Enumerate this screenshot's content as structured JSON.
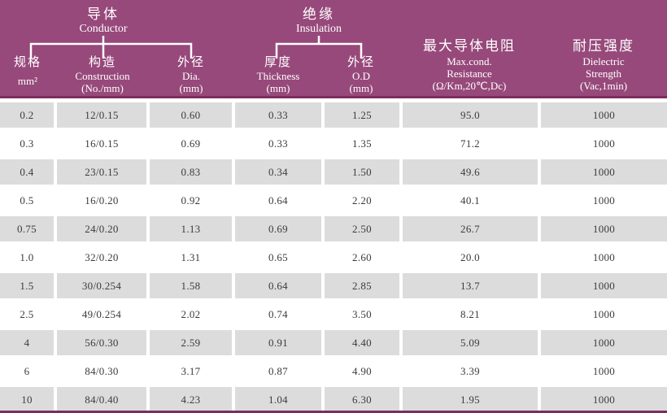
{
  "colors": {
    "header_bg": "#97497b",
    "rule": "#7b2d5e",
    "row_gray": "#dcdcdc",
    "row_white": "#ffffff",
    "header_text": "#ffffff",
    "text": "#3b3b3b"
  },
  "header": {
    "groups": [
      {
        "zh": "导体",
        "en": "Conductor"
      },
      {
        "zh": "绝缘",
        "en": "Insulation"
      }
    ],
    "columns": [
      {
        "zh": "规格",
        "lines": [
          "mm²"
        ]
      },
      {
        "zh": "构造",
        "lines": [
          "Construction",
          "(No./mm)"
        ]
      },
      {
        "zh": "外径",
        "lines": [
          "Dia.",
          "(mm)"
        ]
      },
      {
        "zh": "厚度",
        "lines": [
          "Thickness",
          "(mm)"
        ]
      },
      {
        "zh": "外径",
        "lines": [
          "O.D",
          "(mm)"
        ]
      },
      {
        "zh": "最大导体电阻",
        "lines": [
          "Max.cond.",
          "Resistance",
          "(Ω/Km,20℃,Dc)"
        ]
      },
      {
        "zh": "耐压强度",
        "lines": [
          "Dielectric",
          "Strength",
          "(Vac,1min)"
        ]
      }
    ]
  },
  "table": {
    "rows": [
      [
        "0.2",
        "12/0.15",
        "0.60",
        "0.33",
        "1.25",
        "95.0",
        "1000"
      ],
      [
        "0.3",
        "16/0.15",
        "0.69",
        "0.33",
        "1.35",
        "71.2",
        "1000"
      ],
      [
        "0.4",
        "23/0.15",
        "0.83",
        "0.34",
        "1.50",
        "49.6",
        "1000"
      ],
      [
        "0.5",
        "16/0.20",
        "0.92",
        "0.64",
        "2.20",
        "40.1",
        "1000"
      ],
      [
        "0.75",
        "24/0.20",
        "1.13",
        "0.69",
        "2.50",
        "26.7",
        "1000"
      ],
      [
        "1.0",
        "32/0.20",
        "1.31",
        "0.65",
        "2.60",
        "20.0",
        "1000"
      ],
      [
        "1.5",
        "30/0.254",
        "1.58",
        "0.64",
        "2.85",
        "13.7",
        "1000"
      ],
      [
        "2.5",
        "49/0.254",
        "2.02",
        "0.74",
        "3.50",
        "8.21",
        "1000"
      ],
      [
        "4",
        "56/0.30",
        "2.59",
        "0.91",
        "4.40",
        "5.09",
        "1000"
      ],
      [
        "6",
        "84/0.30",
        "3.17",
        "0.87",
        "4.90",
        "3.39",
        "1000"
      ],
      [
        "10",
        "84/0.40",
        "4.23",
        "1.04",
        "6.30",
        "1.95",
        "1000"
      ]
    ]
  }
}
